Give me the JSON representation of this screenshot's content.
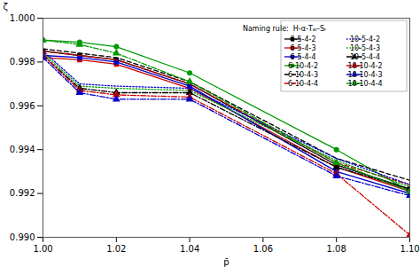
{
  "chart_data": {
    "type": "line",
    "x": [
      1.0,
      1.01,
      1.02,
      1.04,
      1.08,
      1.1
    ],
    "series": [
      {
        "name": "6-5-4-2",
        "color": "#000000",
        "line_style": "solid",
        "marker": "square",
        "values": [
          0.9985,
          0.9983,
          0.9981,
          0.997,
          0.9933,
          0.9922
        ]
      },
      {
        "name": "6-5-4-3",
        "color": "#cc0000",
        "line_style": "solid",
        "marker": "square",
        "values": [
          0.9982,
          0.9981,
          0.9979,
          0.9968,
          0.9932,
          0.9921
        ]
      },
      {
        "name": "6-5-4-4",
        "color": "#0000cc",
        "line_style": "solid",
        "marker": "square",
        "values": [
          0.9983,
          0.9982,
          0.998,
          0.9969,
          0.993,
          0.992
        ]
      },
      {
        "name": "6-10-4-2",
        "color": "#009900",
        "line_style": "solid",
        "marker": "circle",
        "values": [
          0.999,
          0.9989,
          0.9987,
          0.9975,
          0.994,
          0.9921
        ]
      },
      {
        "name": "6-10-4-3",
        "color": "#000000",
        "line_style": "dashed",
        "marker": "none",
        "values": [
          0.9986,
          0.9984,
          0.9982,
          0.9971,
          0.9936,
          0.9926
        ]
      },
      {
        "name": "6-10-4-4",
        "color": "#cc0000",
        "line_style": "dashed",
        "marker": "none",
        "values": [
          0.9985,
          0.9983,
          0.9981,
          0.997,
          0.9934,
          0.9924
        ]
      },
      {
        "name": "10-5-4-2",
        "color": "#0000cc",
        "line_style": "dotted",
        "marker": "none",
        "values": [
          0.9985,
          0.997,
          0.9969,
          0.9968,
          0.9936,
          0.9924
        ]
      },
      {
        "name": "10-5-4-3",
        "color": "#009900",
        "line_style": "dotted",
        "marker": "none",
        "values": [
          0.9984,
          0.9969,
          0.9968,
          0.9967,
          0.9935,
          0.9923
        ]
      },
      {
        "name": "10-5-4-4",
        "color": "#000000",
        "line_style": "dashdot",
        "marker": "triangle",
        "values": [
          0.9983,
          0.9968,
          0.9966,
          0.9966,
          0.9932,
          0.9922
        ]
      },
      {
        "name": "10-10-4-2",
        "color": "#cc0000",
        "line_style": "dashdot",
        "marker": "triangle",
        "values": [
          0.9983,
          0.9967,
          0.9965,
          0.9964,
          0.9929,
          0.9901
        ]
      },
      {
        "name": "10-10-4-3",
        "color": "#0000cc",
        "line_style": "dashdot",
        "marker": "triangle",
        "values": [
          0.9982,
          0.9966,
          0.9963,
          0.9963,
          0.9928,
          0.9919
        ]
      },
      {
        "name": "10-10-4-4",
        "color": "#009900",
        "line_style": "dashdot",
        "marker": "triangle",
        "values": [
          0.999,
          0.9988,
          0.9984,
          0.9971,
          0.9934,
          0.9921
        ]
      }
    ],
    "xlabel": "p̄",
    "ylabel": "ζ",
    "xlim": [
      1.0,
      1.1
    ],
    "ylim": [
      0.99,
      1.0
    ],
    "xticks": [
      {
        "value": 1.0,
        "label": "1.00"
      },
      1.02,
      1.04,
      1.06,
      1.08,
      {
        "value": 1.1,
        "label": "1.10"
      }
    ],
    "yticks": [
      {
        "value": 0.99,
        "label": "0.990"
      },
      {
        "value": 0.992,
        "label": "0.992"
      },
      {
        "value": 0.994,
        "label": "0.994"
      },
      {
        "value": 0.996,
        "label": "0.996"
      },
      {
        "value": 0.998,
        "label": "0.998"
      },
      {
        "value": 1.0,
        "label": "1.000"
      }
    ],
    "annotation": "Naming rule:  H-α-Tₐᵣ-Sᵣ",
    "grid": false,
    "legend": "upper right"
  }
}
